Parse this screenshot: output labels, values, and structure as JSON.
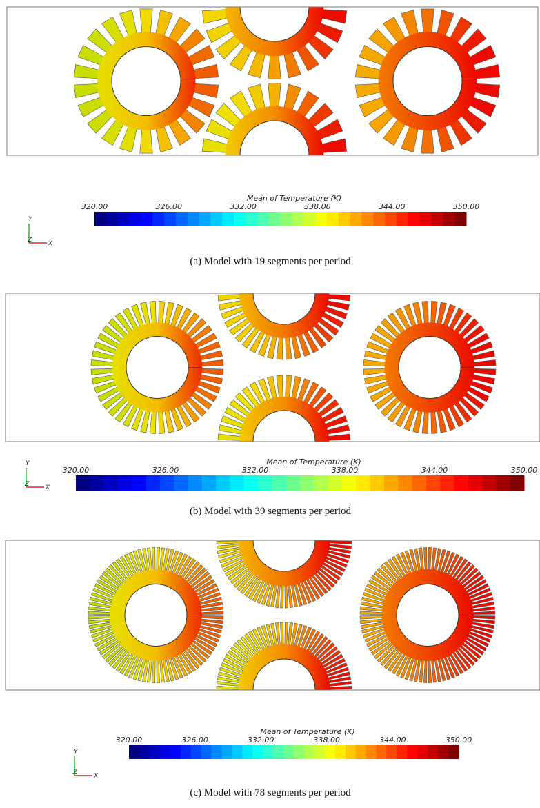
{
  "panels": [
    {
      "colorbar": {
        "title": "Mean of Temperature (K)",
        "ticks": [
          "320.00",
          "326.00",
          "332.00",
          "338.00",
          "344.00",
          "350.00"
        ]
      },
      "axes": {
        "y": "Y",
        "z": "Z",
        "x": "X"
      },
      "caption": "(a) Model with 19 segments per period"
    },
    {
      "colorbar": {
        "title": "Mean of Temperature (K)",
        "ticks": [
          "320.00",
          "326.00",
          "332.00",
          "338.00",
          "344.00",
          "350.00"
        ]
      },
      "axes": {
        "y": "Y",
        "z": "Z",
        "x": "X"
      },
      "caption": "(b) Model with 39 segments per period"
    },
    {
      "colorbar": {
        "title": "Mean of Temperature (K)",
        "ticks": [
          "320.00",
          "326.00",
          "332.00",
          "338.00",
          "344.00",
          "350.00"
        ]
      },
      "axes": {
        "y": "Y",
        "z": "Z",
        "x": "X"
      },
      "caption": "(c) Model with 78 segments per period"
    }
  ]
}
